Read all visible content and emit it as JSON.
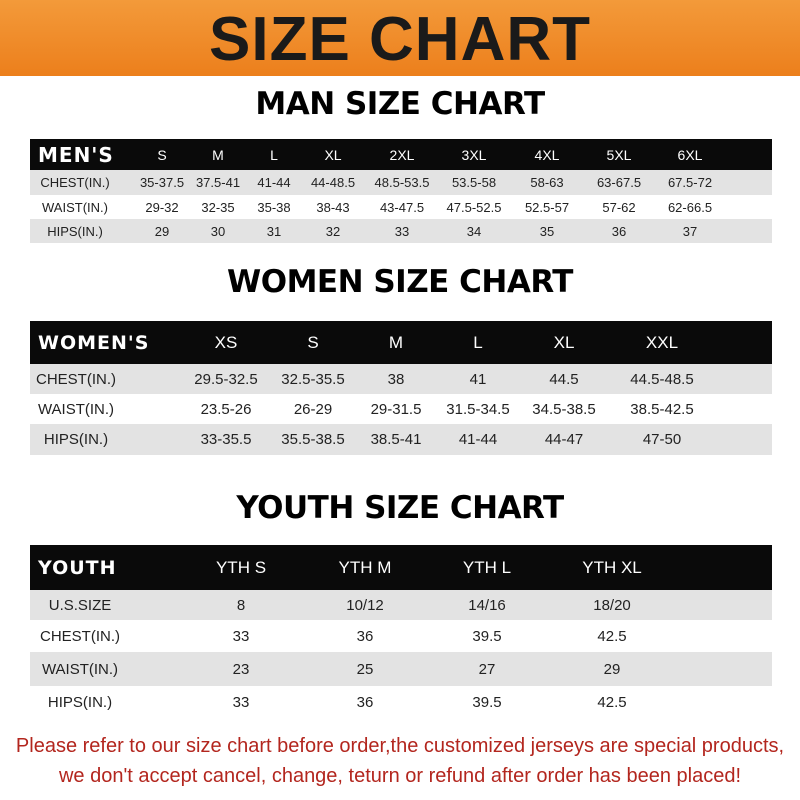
{
  "banner": {
    "title": "SIZE CHART"
  },
  "men": {
    "title": "MAN SIZE CHART",
    "header": [
      "MEN'S",
      "S",
      "M",
      "L",
      "XL",
      "2XL",
      "3XL",
      "4XL",
      "5XL",
      "6XL"
    ],
    "rows": [
      [
        "CHEST(IN.)",
        "35-37.5",
        "37.5-41",
        "41-44",
        "44-48.5",
        "48.5-53.5",
        "53.5-58",
        "58-63",
        "63-67.5",
        "67.5-72"
      ],
      [
        "WAIST(IN.)",
        "29-32",
        "32-35",
        "35-38",
        "38-43",
        "43-47.5",
        "47.5-52.5",
        "52.5-57",
        "57-62",
        "62-66.5"
      ],
      [
        "HIPS(IN.)",
        "29",
        "30",
        "31",
        "32",
        "33",
        "34",
        "35",
        "36",
        "37"
      ]
    ]
  },
  "women": {
    "title": "WOMEN SIZE CHART",
    "header": [
      "WOMEN'S",
      "XS",
      "S",
      "M",
      "L",
      "XL",
      "XXL"
    ],
    "rows": [
      [
        "CHEST(IN.)",
        "29.5-32.5",
        "32.5-35.5",
        "38",
        "41",
        "44.5",
        "44.5-48.5"
      ],
      [
        "WAIST(IN.)",
        "23.5-26",
        "26-29",
        "29-31.5",
        "31.5-34.5",
        "34.5-38.5",
        "38.5-42.5"
      ],
      [
        "HIPS(IN.)",
        "33-35.5",
        "35.5-38.5",
        "38.5-41",
        "41-44",
        "44-47",
        "47-50"
      ]
    ]
  },
  "youth": {
    "title": "YOUTH SIZE CHART",
    "header": [
      "YOUTH",
      "YTH S",
      "YTH M",
      "YTH L",
      "YTH XL"
    ],
    "rows": [
      [
        "U.S.SIZE",
        "8",
        "10/12",
        "14/16",
        "18/20"
      ],
      [
        "CHEST(IN.)",
        "33",
        "36",
        "39.5",
        "42.5"
      ],
      [
        "WAIST(IN.)",
        "23",
        "25",
        "27",
        "29"
      ],
      [
        "HIPS(IN.)",
        "33",
        "36",
        "39.5",
        "42.5"
      ]
    ]
  },
  "notice": {
    "line1": "Please refer to our size chart before order,the customized jerseys are special products,",
    "line2": "we don't accept cancel, change, teturn or refund after order has been placed!"
  },
  "colors": {
    "banner": "#ec7f1c",
    "header_row": "#0a0a0a",
    "stripe": "#e3e3e3",
    "notice": "#b3261e"
  }
}
